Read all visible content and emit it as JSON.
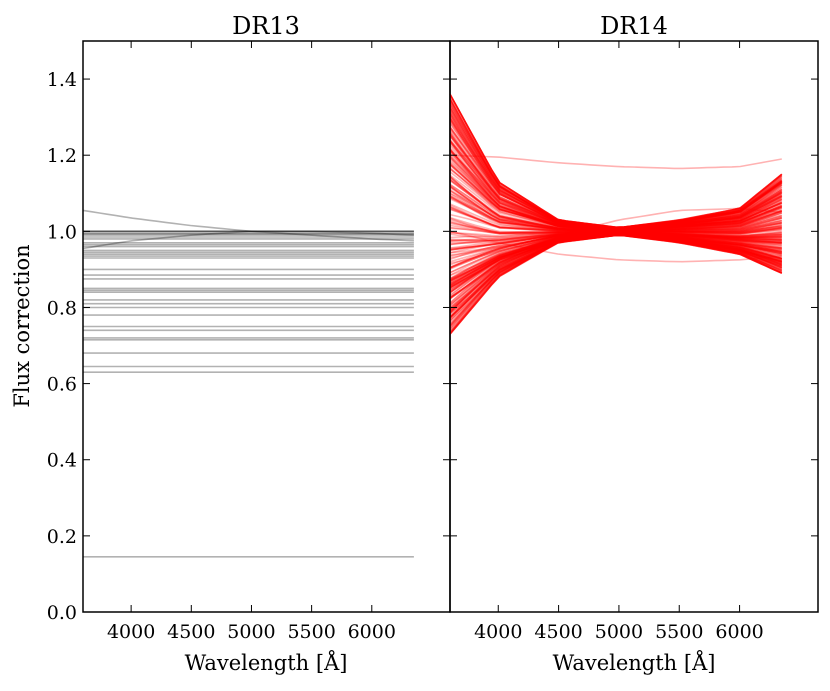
{
  "chart_data": [
    {
      "type": "line",
      "title": "DR13",
      "xlabel": "Wavelength [Å]",
      "ylabel": "Flux correction",
      "xlim": [
        3600,
        6650
      ],
      "ylim": [
        0.0,
        1.5
      ],
      "xticks": [
        4000,
        4500,
        5000,
        5500,
        6000
      ],
      "yticks": [
        0.0,
        0.2,
        0.4,
        0.6,
        0.8,
        1.0,
        1.2,
        1.4
      ],
      "color": "#000000",
      "opacity": 0.3,
      "x_range": [
        3600,
        6350
      ],
      "constant_curves": [
        1.0,
        1.0,
        1.0,
        0.995,
        0.993,
        0.99,
        0.985,
        0.98,
        0.97,
        0.965,
        0.96,
        0.95,
        0.945,
        0.94,
        0.935,
        0.93,
        0.9,
        0.885,
        0.875,
        0.85,
        0.845,
        0.84,
        0.82,
        0.81,
        0.8,
        0.78,
        0.75,
        0.74,
        0.72,
        0.715,
        0.68,
        0.645,
        0.63,
        0.145
      ],
      "sloped_curves": [
        {
          "x": [
            3600,
            4000,
            4500,
            5000,
            5500,
            6000,
            6350
          ],
          "y": [
            1.055,
            1.035,
            1.015,
            1.0,
            0.99,
            0.98,
            0.975
          ]
        },
        {
          "x": [
            3600,
            4000,
            4500,
            5000,
            5500,
            6000,
            6350
          ],
          "y": [
            0.955,
            0.975,
            0.99,
            1.0,
            1.0,
            0.995,
            0.99
          ]
        }
      ]
    },
    {
      "type": "line",
      "title": "DR14",
      "xlabel": "Wavelength [Å]",
      "ylabel": "",
      "xlim": [
        3600,
        6650
      ],
      "ylim": [
        0.0,
        1.5
      ],
      "xticks": [
        4000,
        4500,
        5000,
        5500,
        6000
      ],
      "color": "#ff0000",
      "opacity": 0.3,
      "x_range": [
        3600,
        6350
      ],
      "n_curves": 260,
      "band": {
        "x": [
          3600,
          4000,
          4500,
          5000,
          5500,
          6000,
          6350
        ],
        "upper": [
          1.36,
          1.13,
          1.03,
          1.01,
          1.03,
          1.06,
          1.15
        ],
        "lower": [
          0.73,
          0.88,
          0.97,
          0.99,
          0.97,
          0.94,
          0.89
        ]
      },
      "outlier_curves": [
        {
          "x": [
            3600,
            4000,
            4500,
            5000,
            5500,
            6000,
            6350
          ],
          "y": [
            1.2,
            1.195,
            1.18,
            1.17,
            1.165,
            1.17,
            1.19
          ]
        },
        {
          "x": [
            3600,
            4000,
            4500,
            5000,
            5500,
            6000,
            6350
          ],
          "y": [
            1.0,
            0.97,
            0.94,
            0.925,
            0.92,
            0.925,
            0.935
          ]
        },
        {
          "x": [
            3600,
            4000,
            4500,
            5000,
            5500,
            6000,
            6350
          ],
          "y": [
            0.85,
            0.93,
            0.99,
            1.03,
            1.055,
            1.06,
            1.05
          ]
        }
      ]
    }
  ]
}
